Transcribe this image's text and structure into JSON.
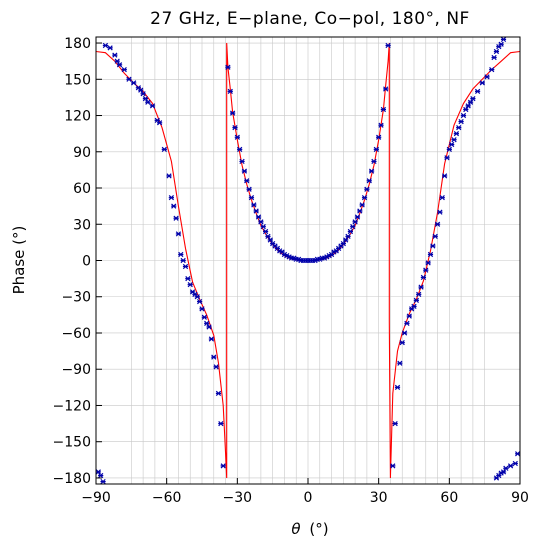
{
  "chart_data": {
    "type": "scatter",
    "title": "27 GHz, E−plane, Co−pol, 180°, NF",
    "xlabel_symbol": "θ",
    "xlabel_unit": "(°)",
    "ylabel": "Phase (°)",
    "xlim": [
      -90,
      90
    ],
    "ylim": [
      -185,
      185
    ],
    "x_ticks": [
      -90,
      -60,
      -30,
      0,
      30,
      60,
      90
    ],
    "x_tick_labels": [
      "−90",
      "−60",
      "−30",
      "0",
      "30",
      "60",
      "90"
    ],
    "y_ticks": [
      180,
      150,
      120,
      90,
      60,
      30,
      0,
      -30,
      -60,
      -90,
      -120,
      -150,
      -180
    ],
    "y_tick_labels": [
      "180",
      "150",
      "120",
      "90",
      "60",
      "30",
      "0",
      "−30",
      "−60",
      "−90",
      "−120",
      "−150",
      "−180"
    ],
    "grid": true,
    "colors": {
      "line": "#ff0000",
      "markers": "#0000aa",
      "grid": "#c8c8c8"
    },
    "series": [
      {
        "kind": "line",
        "color": "#ff0000",
        "points": [
          [
            -90,
            173
          ],
          [
            -86,
            172
          ],
          [
            -82,
            165
          ],
          [
            -78,
            155
          ],
          [
            -74,
            147
          ],
          [
            -70,
            140
          ],
          [
            -66,
            130
          ],
          [
            -62,
            110
          ],
          [
            -58,
            82
          ],
          [
            -55,
            45
          ],
          [
            -52,
            10
          ],
          [
            -49,
            -18
          ],
          [
            -46,
            -32
          ],
          [
            -43,
            -45
          ],
          [
            -40,
            -62
          ],
          [
            -38,
            -85
          ],
          [
            -36,
            -120
          ],
          [
            -35,
            -160
          ],
          [
            -34.5,
            -180
          ],
          [
            -34.5,
            180
          ],
          [
            -34,
            160
          ],
          [
            -33,
            142
          ],
          [
            -32,
            123
          ],
          [
            -30,
            100
          ],
          [
            -28,
            79
          ],
          [
            -26,
            63
          ],
          [
            -24,
            50
          ],
          [
            -22,
            39
          ],
          [
            -20,
            29
          ],
          [
            -18,
            22
          ],
          [
            -16,
            16
          ],
          [
            -14,
            11
          ],
          [
            -12,
            7
          ],
          [
            -10,
            4
          ],
          [
            -8,
            2
          ],
          [
            -6,
            1
          ],
          [
            -4,
            0
          ],
          [
            0,
            0
          ],
          [
            4,
            0
          ],
          [
            6,
            1
          ],
          [
            8,
            2
          ],
          [
            10,
            4
          ],
          [
            12,
            7
          ],
          [
            14,
            11
          ],
          [
            16,
            16
          ],
          [
            18,
            22
          ],
          [
            20,
            29
          ],
          [
            22,
            39
          ],
          [
            24,
            50
          ],
          [
            26,
            63
          ],
          [
            28,
            79
          ],
          [
            30,
            100
          ],
          [
            32,
            125
          ],
          [
            33,
            145
          ],
          [
            34,
            165
          ],
          [
            34.5,
            180
          ],
          [
            34.5,
            -50
          ],
          [
            35,
            -180
          ],
          [
            36,
            -110
          ],
          [
            38,
            -75
          ],
          [
            40,
            -60
          ],
          [
            43,
            -44
          ],
          [
            46,
            -32
          ],
          [
            49,
            -17
          ],
          [
            52,
            8
          ],
          [
            55,
            40
          ],
          [
            58,
            80
          ],
          [
            62,
            112
          ],
          [
            66,
            130
          ],
          [
            70,
            142
          ],
          [
            74,
            150
          ],
          [
            78,
            158
          ],
          [
            82,
            165
          ],
          [
            86,
            172
          ],
          [
            90,
            173
          ]
        ]
      },
      {
        "kind": "markers",
        "color": "#0000aa",
        "points": [
          [
            -89,
            -175
          ],
          [
            -88,
            -178
          ],
          [
            -87,
            -183
          ],
          [
            -86,
            178
          ],
          [
            -84,
            176
          ],
          [
            -82,
            170
          ],
          [
            -81,
            165
          ],
          [
            -80,
            162
          ],
          [
            -78,
            158
          ],
          [
            -76,
            150
          ],
          [
            -74,
            147
          ],
          [
            -72,
            143
          ],
          [
            -71,
            141
          ],
          [
            -70,
            138
          ],
          [
            -69,
            134
          ],
          [
            -68,
            131
          ],
          [
            -66,
            128
          ],
          [
            -64,
            116
          ],
          [
            -63,
            114
          ],
          [
            -61,
            92
          ],
          [
            -59,
            70
          ],
          [
            -58,
            52
          ],
          [
            -57,
            45
          ],
          [
            -56,
            35
          ],
          [
            -55,
            22
          ],
          [
            -54,
            5
          ],
          [
            -53,
            0
          ],
          [
            -52,
            -5
          ],
          [
            -51,
            -15
          ],
          [
            -50,
            -20
          ],
          [
            -49,
            -26
          ],
          [
            -48,
            -28
          ],
          [
            -47,
            -30
          ],
          [
            -46,
            -34
          ],
          [
            -45,
            -40
          ],
          [
            -44,
            -47
          ],
          [
            -43,
            -52
          ],
          [
            -42,
            -55
          ],
          [
            -41,
            -65
          ],
          [
            -40,
            -80
          ],
          [
            -39,
            -88
          ],
          [
            -38,
            -110
          ],
          [
            -37,
            -135
          ],
          [
            -36,
            -170
          ],
          [
            -34,
            160
          ],
          [
            -33,
            140
          ],
          [
            -32,
            122
          ],
          [
            -31,
            110
          ],
          [
            -30,
            102
          ],
          [
            -29,
            92
          ],
          [
            -28,
            82
          ],
          [
            -27,
            74
          ],
          [
            -26,
            66
          ],
          [
            -25,
            59
          ],
          [
            -24,
            52
          ],
          [
            -23,
            46
          ],
          [
            -22,
            41
          ],
          [
            -21,
            36
          ],
          [
            -20,
            32
          ],
          [
            -19,
            28
          ],
          [
            -18,
            24
          ],
          [
            -17,
            20
          ],
          [
            -16,
            17
          ],
          [
            -15,
            14
          ],
          [
            -14,
            12
          ],
          [
            -13,
            10
          ],
          [
            -12,
            8
          ],
          [
            -11,
            7
          ],
          [
            -10,
            5
          ],
          [
            -9,
            4
          ],
          [
            -8,
            3
          ],
          [
            -7,
            2
          ],
          [
            -6,
            2
          ],
          [
            -5,
            1
          ],
          [
            -4,
            1
          ],
          [
            -3,
            0
          ],
          [
            -2,
            0
          ],
          [
            -1,
            0
          ],
          [
            0,
            0
          ],
          [
            1,
            0
          ],
          [
            2,
            0
          ],
          [
            3,
            0
          ],
          [
            4,
            1
          ],
          [
            5,
            1
          ],
          [
            6,
            2
          ],
          [
            7,
            2
          ],
          [
            8,
            3
          ],
          [
            9,
            4
          ],
          [
            10,
            5
          ],
          [
            11,
            7
          ],
          [
            12,
            8
          ],
          [
            13,
            10
          ],
          [
            14,
            12
          ],
          [
            15,
            14
          ],
          [
            16,
            17
          ],
          [
            17,
            20
          ],
          [
            18,
            24
          ],
          [
            19,
            28
          ],
          [
            20,
            32
          ],
          [
            21,
            36
          ],
          [
            22,
            41
          ],
          [
            23,
            46
          ],
          [
            24,
            52
          ],
          [
            25,
            59
          ],
          [
            26,
            66
          ],
          [
            27,
            74
          ],
          [
            28,
            82
          ],
          [
            29,
            92
          ],
          [
            30,
            102
          ],
          [
            31,
            112
          ],
          [
            32,
            125
          ],
          [
            33,
            142
          ],
          [
            34,
            178
          ],
          [
            36,
            -170
          ],
          [
            37,
            -135
          ],
          [
            38,
            -105
          ],
          [
            39,
            -85
          ],
          [
            40,
            -68
          ],
          [
            41,
            -60
          ],
          [
            42,
            -52
          ],
          [
            43,
            -46
          ],
          [
            44,
            -40
          ],
          [
            45,
            -38
          ],
          [
            46,
            -33
          ],
          [
            47,
            -28
          ],
          [
            48,
            -22
          ],
          [
            49,
            -14
          ],
          [
            50,
            -8
          ],
          [
            51,
            -2
          ],
          [
            52,
            5
          ],
          [
            53,
            12
          ],
          [
            54,
            20
          ],
          [
            55,
            30
          ],
          [
            56,
            40
          ],
          [
            57,
            52
          ],
          [
            58,
            70
          ],
          [
            59,
            85
          ],
          [
            60,
            92
          ],
          [
            61,
            96
          ],
          [
            62,
            100
          ],
          [
            63,
            105
          ],
          [
            64,
            110
          ],
          [
            65,
            115
          ],
          [
            66,
            120
          ],
          [
            67,
            125
          ],
          [
            68,
            128
          ],
          [
            69,
            131
          ],
          [
            70,
            134
          ],
          [
            72,
            140
          ],
          [
            74,
            147
          ],
          [
            76,
            152
          ],
          [
            78,
            158
          ],
          [
            79,
            168
          ],
          [
            80,
            173
          ],
          [
            81,
            177
          ],
          [
            82,
            179
          ],
          [
            83,
            183
          ],
          [
            80,
            -180
          ],
          [
            81,
            -178
          ],
          [
            82,
            -176
          ],
          [
            83,
            -175
          ],
          [
            84,
            -172
          ],
          [
            86,
            -170
          ],
          [
            88,
            -168
          ],
          [
            89,
            -160
          ]
        ]
      }
    ]
  }
}
